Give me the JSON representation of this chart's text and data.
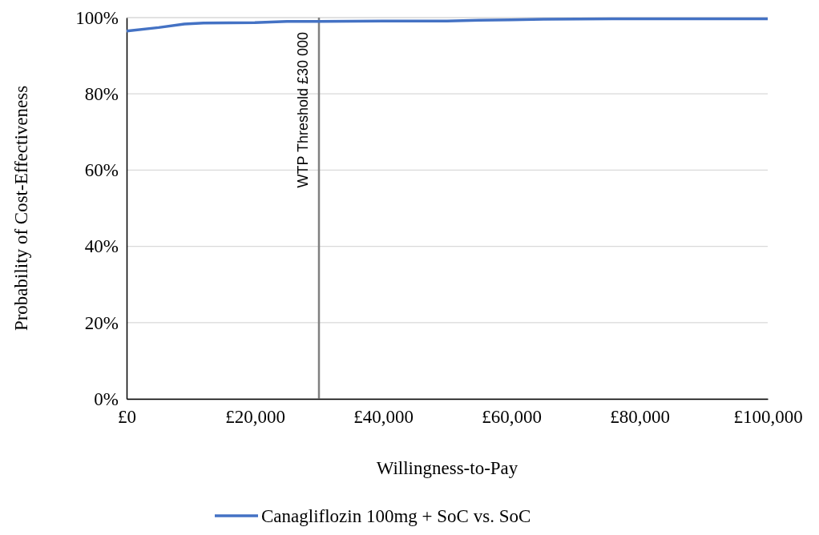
{
  "chart_data": {
    "type": "line",
    "xlabel": "Willingness-to-Pay",
    "ylabel": "Probability of Cost-Effectiveness",
    "x": [
      0,
      5000,
      9000,
      12000,
      20000,
      25000,
      30000,
      40000,
      50000,
      55000,
      60000,
      65000,
      80000,
      100000
    ],
    "series": [
      {
        "name": "Canagliflozin 100mg + SoC vs. SoC",
        "color": "#4472c4",
        "values": [
          96.5,
          97.4,
          98.3,
          98.6,
          98.7,
          99,
          99,
          99.1,
          99.1,
          99.3,
          99.4,
          99.6,
          99.7,
          99.7
        ]
      }
    ],
    "xlim": [
      0,
      100000
    ],
    "xticks": [
      {
        "value": 0,
        "label": "£0"
      },
      {
        "value": 20000,
        "label": "£20,000"
      },
      {
        "value": 40000,
        "label": "£40,000"
      },
      {
        "value": 60000,
        "label": "£60,000"
      },
      {
        "value": 80000,
        "label": "£80,000"
      },
      {
        "value": 100000,
        "label": "£100,000"
      }
    ],
    "ylim": [
      0,
      100
    ],
    "yticks": [
      {
        "value": 0,
        "label": "0%"
      },
      {
        "value": 20,
        "label": "20%"
      },
      {
        "value": 40,
        "label": "40%"
      },
      {
        "value": 60,
        "label": "60%"
      },
      {
        "value": 80,
        "label": "80%"
      },
      {
        "value": 100,
        "label": "100%"
      }
    ],
    "ref_lines": [
      {
        "axis": "x",
        "value": 30000,
        "label": "WTP Threshold £30 000",
        "color": "#808080"
      }
    ],
    "grid": "y",
    "legend": "bottom",
    "marker": "none",
    "line_style": "solid"
  }
}
